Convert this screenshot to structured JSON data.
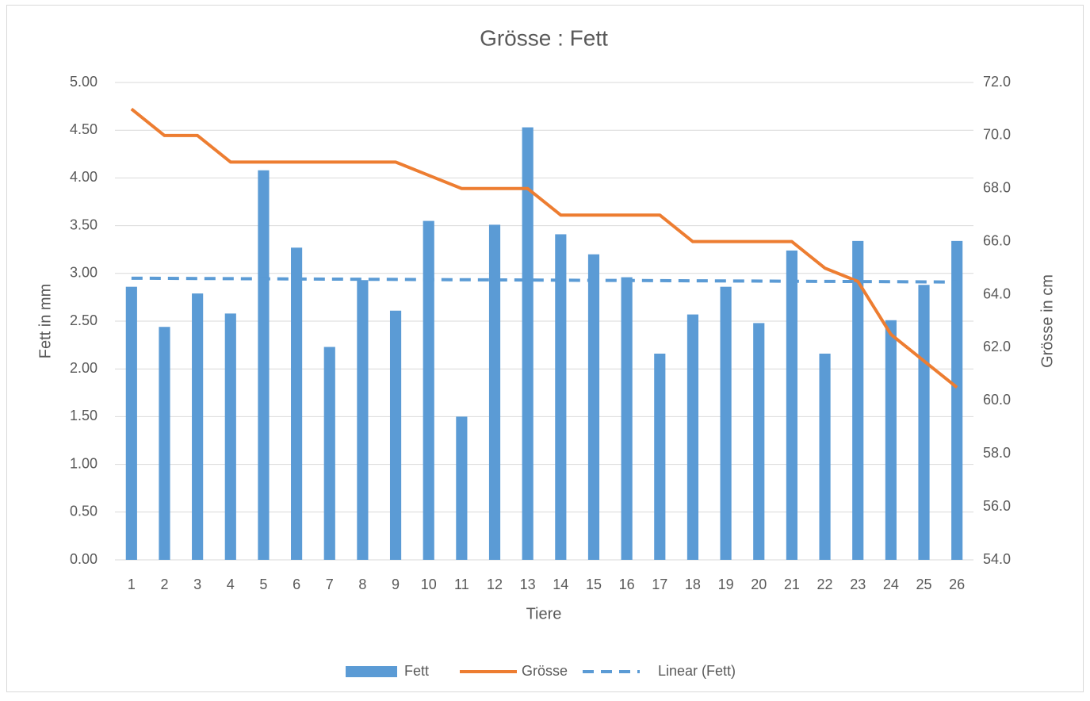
{
  "chart_data": {
    "type": "bar",
    "title": "Grösse : Fett",
    "x_label": "Tiere",
    "y_label": "Fett in mm",
    "y2_label": "Grösse in cm",
    "categories": [
      1,
      2,
      3,
      4,
      5,
      6,
      7,
      8,
      9,
      10,
      11,
      12,
      13,
      14,
      15,
      16,
      17,
      18,
      19,
      20,
      21,
      22,
      23,
      24,
      25,
      26
    ],
    "series": [
      {
        "name": "Fett",
        "type": "bar",
        "color": "#5b9bd5",
        "values": [
          2.86,
          2.44,
          2.79,
          2.58,
          4.08,
          3.27,
          2.23,
          2.93,
          2.61,
          3.55,
          1.5,
          3.51,
          4.53,
          3.41,
          3.2,
          2.96,
          2.16,
          2.57,
          2.86,
          2.48,
          3.24,
          2.16,
          3.34,
          2.51,
          2.88,
          3.34
        ]
      },
      {
        "name": "Grösse",
        "type": "line",
        "axis": "y2",
        "color": "#ed7d31",
        "values": [
          71.0,
          70.0,
          70.0,
          69.0,
          69.0,
          69.0,
          69.0,
          69.0,
          69.0,
          68.5,
          68.0,
          68.0,
          68.0,
          67.0,
          67.0,
          67.0,
          67.0,
          66.0,
          66.0,
          66.0,
          66.0,
          65.0,
          64.5,
          62.5,
          61.5,
          60.5
        ]
      },
      {
        "name": "Linear (Fett)",
        "type": "trendline",
        "color": "#5b9bd5",
        "dashed": true,
        "x": [
          1,
          26
        ],
        "values": [
          2.95,
          2.91
        ]
      }
    ],
    "ylim": [
      0,
      5
    ],
    "yticks": [
      {
        "value": 0,
        "label": "0.00"
      },
      {
        "value": 0.5,
        "label": "0.50"
      },
      {
        "value": 1,
        "label": "1.00"
      },
      {
        "value": 1.5,
        "label": "1.50"
      },
      {
        "value": 2,
        "label": "2.00"
      },
      {
        "value": 2.5,
        "label": "2.50"
      },
      {
        "value": 3,
        "label": "3.00"
      },
      {
        "value": 3.5,
        "label": "3.50"
      },
      {
        "value": 4,
        "label": "4.00"
      },
      {
        "value": 4.5,
        "label": "4.50"
      },
      {
        "value": 5,
        "label": "5.00"
      }
    ],
    "y2lim": [
      54,
      72
    ],
    "y2ticks": [
      {
        "value": 54,
        "label": "54.0"
      },
      {
        "value": 56,
        "label": "56.0"
      },
      {
        "value": 58,
        "label": "58.0"
      },
      {
        "value": 60,
        "label": "60.0"
      },
      {
        "value": 62,
        "label": "62.0"
      },
      {
        "value": 64,
        "label": "64.0"
      },
      {
        "value": 66,
        "label": "66.0"
      },
      {
        "value": 68,
        "label": "68.0"
      },
      {
        "value": 70,
        "label": "70.0"
      },
      {
        "value": 72,
        "label": "72.0"
      }
    ],
    "grid": true,
    "legend": "bottom"
  }
}
